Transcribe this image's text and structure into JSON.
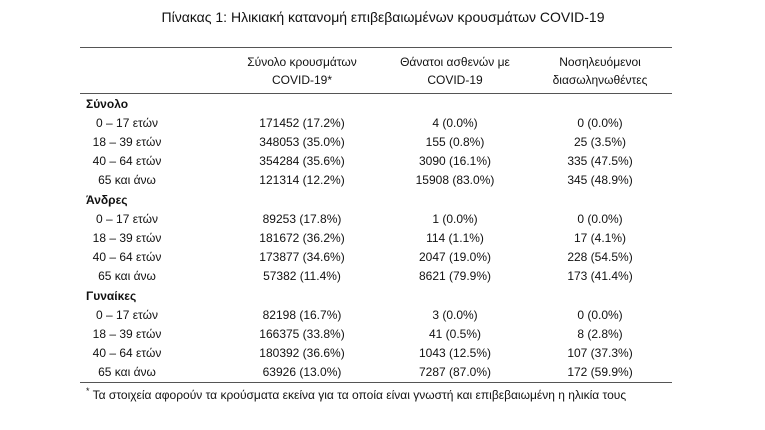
{
  "title": "Πίνακας 1: Ηλικιακή κατανομή επιβεβαιωμένων κρουσμάτων COVID-19",
  "table": {
    "header": [
      [
        "Σύνολο κρουσμάτων",
        "COVID-19*"
      ],
      [
        "Θάνατοι ασθενών με",
        "COVID-19"
      ],
      [
        "Νοσηλευόμενοι",
        "διασωληνωθέντες"
      ]
    ],
    "sections": [
      {
        "name": "Σύνολο",
        "rows": [
          [
            "0 – 17 ετών",
            "171452 (17.2%)",
            "4 (0.0%)",
            "0 (0.0%)"
          ],
          [
            "18 – 39 ετών",
            "348053 (35.0%)",
            "155 (0.8%)",
            "25 (3.5%)"
          ],
          [
            "40 – 64 ετών",
            "354284 (35.6%)",
            "3090 (16.1%)",
            "335 (47.5%)"
          ],
          [
            "65 και άνω",
            "121314 (12.2%)",
            "15908 (83.0%)",
            "345 (48.9%)"
          ]
        ]
      },
      {
        "name": "Άνδρες",
        "rows": [
          [
            "0 – 17 ετών",
            "89253 (17.8%)",
            "1 (0.0%)",
            "0 (0.0%)"
          ],
          [
            "18 – 39 ετών",
            "181672 (36.2%)",
            "114 (1.1%)",
            "17 (4.1%)"
          ],
          [
            "40 – 64 ετών",
            "173877 (34.6%)",
            "2047 (19.0%)",
            "228 (54.5%)"
          ],
          [
            "65 και άνω",
            "57382 (11.4%)",
            "8621 (79.9%)",
            "173 (41.4%)"
          ]
        ]
      },
      {
        "name": "Γυναίκες",
        "rows": [
          [
            "0 – 17 ετών",
            "82198 (16.7%)",
            "3 (0.0%)",
            "0 (0.0%)"
          ],
          [
            "18 – 39 ετών",
            "166375 (33.8%)",
            "41 (0.5%)",
            "8 (2.8%)"
          ],
          [
            "40 – 64 ετών",
            "180392 (36.6%)",
            "1043 (12.5%)",
            "107 (37.3%)"
          ],
          [
            "65 και άνω",
            "63926 (13.0%)",
            "7287 (87.0%)",
            "172 (59.9%)"
          ]
        ]
      }
    ]
  },
  "footnote": {
    "mark": "*",
    "text": "Τα στοιχεία αφορούν τα κρούσματα εκείνα για τα οποία είναι γνωστή και επιβεβαιωμένη η ηλικία τους"
  }
}
